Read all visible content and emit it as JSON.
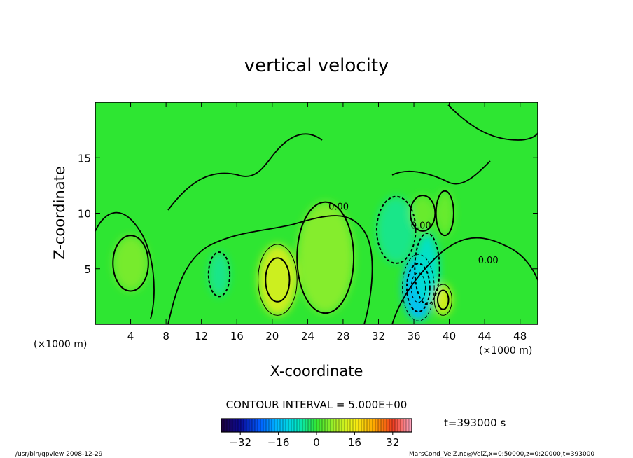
{
  "chart_data": {
    "type": "heatmap",
    "title": "vertical velocity",
    "xlabel": "X-coordinate",
    "ylabel": "Z-coordinate",
    "x_unit_left": "(×1000 m)",
    "x_unit_right": "(×1000 m)",
    "xlim": [
      0,
      50
    ],
    "ylim": [
      0,
      20
    ],
    "x_ticks": [
      4,
      8,
      12,
      16,
      20,
      24,
      28,
      32,
      36,
      40,
      44,
      48
    ],
    "y_ticks": [
      5,
      10,
      15
    ],
    "contour_interval_text": "CONTOUR INTERVAL = 5.000E+00",
    "time_text": "t=393000 s",
    "contour_labels": [
      {
        "text": "0.00",
        "x": 27.5,
        "y": 10.3
      },
      {
        "text": "0.00",
        "x": 36.8,
        "y": 8.6
      },
      {
        "text": "0.00",
        "x": 44.4,
        "y": 5.5
      }
    ],
    "colorbar": {
      "min": -40,
      "max": 40,
      "ticks": [
        -32,
        -16,
        0,
        16,
        32
      ]
    },
    "features": [
      {
        "x": 20.6,
        "y": 4.0,
        "value": 13,
        "rx": 2.2,
        "ry": 3.2
      },
      {
        "x": 26.0,
        "y": 6.0,
        "value": 6,
        "rx": 3.2,
        "ry": 5.0
      },
      {
        "x": 4.0,
        "y": 5.5,
        "value": 5,
        "rx": 2.0,
        "ry": 2.5
      },
      {
        "x": 39.3,
        "y": 2.2,
        "value": 14,
        "rx": 1.0,
        "ry": 1.4
      },
      {
        "x": 36.5,
        "y": 3.3,
        "value": -16,
        "rx": 1.8,
        "ry": 3.0
      },
      {
        "x": 37.5,
        "y": 5.0,
        "value": -9,
        "rx": 1.4,
        "ry": 3.2
      },
      {
        "x": 34.0,
        "y": 8.5,
        "value": -5,
        "rx": 2.2,
        "ry": 3.0
      },
      {
        "x": 14.0,
        "y": 4.5,
        "value": -5,
        "rx": 1.2,
        "ry": 2.0
      },
      {
        "x": 37.0,
        "y": 10.0,
        "value": 4,
        "rx": 1.4,
        "ry": 1.6
      },
      {
        "x": 39.5,
        "y": 10.0,
        "value": 4,
        "rx": 1.0,
        "ry": 2.0
      }
    ]
  },
  "footer": {
    "left": "/usr/bin/gpview   2008-12-29",
    "right": "MarsCond_VelZ.nc@VelZ,x=0:50000,z=0:20000,t=393000"
  }
}
